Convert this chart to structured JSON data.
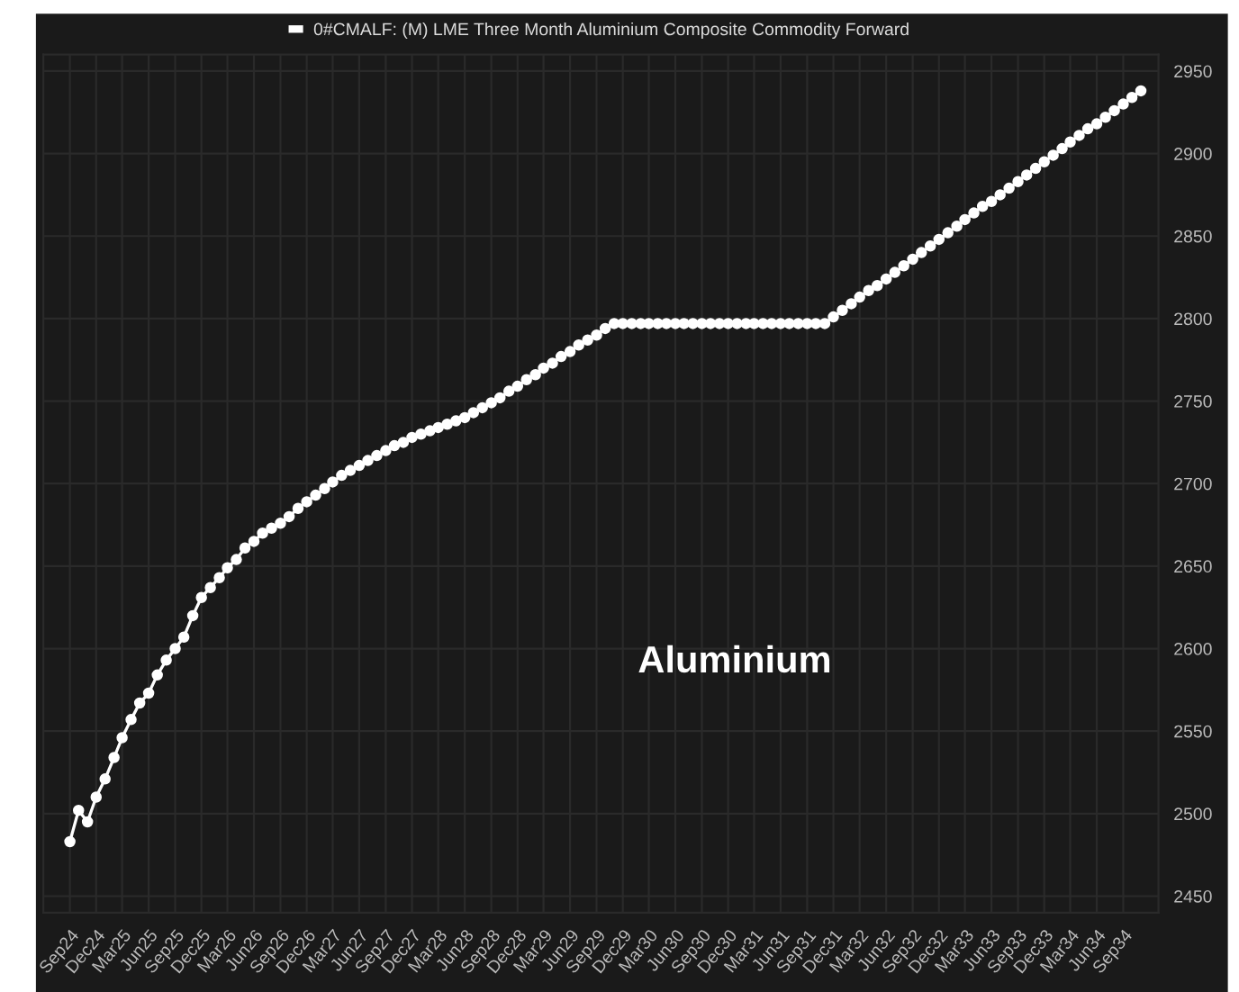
{
  "chart_data": {
    "type": "line",
    "x": [
      "2024-09",
      "2024-10",
      "2024-11",
      "2024-12",
      "2025-01",
      "2025-02",
      "2025-03",
      "2025-04",
      "2025-05",
      "2025-06",
      "2025-07",
      "2025-08",
      "2025-09",
      "2025-10",
      "2025-11",
      "2025-12",
      "2026-01",
      "2026-02",
      "2026-03",
      "2026-04",
      "2026-05",
      "2026-06",
      "2026-07",
      "2026-08",
      "2026-09",
      "2026-10",
      "2026-11",
      "2026-12",
      "2027-01",
      "2027-02",
      "2027-03",
      "2027-04",
      "2027-05",
      "2027-06",
      "2027-07",
      "2027-08",
      "2027-09",
      "2027-10",
      "2027-11",
      "2027-12",
      "2028-01",
      "2028-02",
      "2028-03",
      "2028-04",
      "2028-05",
      "2028-06",
      "2028-07",
      "2028-08",
      "2028-09",
      "2028-10",
      "2028-11",
      "2028-12",
      "2029-01",
      "2029-02",
      "2029-03",
      "2029-04",
      "2029-05",
      "2029-06",
      "2029-07",
      "2029-08",
      "2029-09",
      "2029-10",
      "2029-11",
      "2029-12",
      "2030-01",
      "2030-02",
      "2030-03",
      "2030-04",
      "2030-05",
      "2030-06",
      "2030-07",
      "2030-08",
      "2030-09",
      "2030-10",
      "2030-11",
      "2030-12",
      "2031-01",
      "2031-02",
      "2031-03",
      "2031-04",
      "2031-05",
      "2031-06",
      "2031-07",
      "2031-08",
      "2031-09",
      "2031-10",
      "2031-11",
      "2031-12",
      "2032-01",
      "2032-02",
      "2032-03",
      "2032-04",
      "2032-05",
      "2032-06",
      "2032-07",
      "2032-08",
      "2032-09",
      "2032-10",
      "2032-11",
      "2032-12",
      "2033-01",
      "2033-02",
      "2033-03",
      "2033-04",
      "2033-05",
      "2033-06",
      "2033-07",
      "2033-08",
      "2033-09",
      "2033-10",
      "2033-11",
      "2033-12",
      "2034-01",
      "2034-02",
      "2034-03",
      "2034-04",
      "2034-05",
      "2034-06",
      "2034-07",
      "2034-08",
      "2034-09",
      "2034-10",
      "2034-11"
    ],
    "series": [
      {
        "name": "0#CMALF: (M) LME Three Month Aluminium Composite Commodity Forward",
        "color": "#ffffff",
        "values": [
          2483,
          2502,
          2495,
          2510,
          2521,
          2534,
          2546,
          2557,
          2567,
          2573,
          2584,
          2593,
          2600,
          2607,
          2620,
          2631,
          2637,
          2643,
          2649,
          2654,
          2661,
          2665,
          2670,
          2673,
          2676,
          2680,
          2685,
          2689,
          2693,
          2697,
          2701,
          2705,
          2708,
          2711,
          2714,
          2717,
          2720,
          2723,
          2725,
          2728,
          2730,
          2732,
          2734,
          2736,
          2738,
          2740,
          2743,
          2746,
          2749,
          2752,
          2756,
          2759,
          2763,
          2766,
          2770,
          2773,
          2777,
          2780,
          2784,
          2787,
          2790,
          2794,
          2797,
          2797,
          2797,
          2797,
          2797,
          2797,
          2797,
          2797,
          2797,
          2797,
          2797,
          2797,
          2797,
          2797,
          2797,
          2797,
          2797,
          2797,
          2797,
          2797,
          2797,
          2797,
          2797,
          2797,
          2797,
          2801,
          2805,
          2809,
          2813,
          2817,
          2820,
          2824,
          2828,
          2832,
          2836,
          2840,
          2844,
          2848,
          2852,
          2856,
          2860,
          2864,
          2868,
          2871,
          2875,
          2879,
          2883,
          2887,
          2891,
          2895,
          2899,
          2903,
          2907,
          2911,
          2915,
          2918,
          2922,
          2926,
          2930,
          2934,
          2938
        ]
      }
    ],
    "xlim": [
      "2024-06",
      "2035-01"
    ],
    "xticks": [
      {
        "value": "2024-09",
        "label": "Sep24"
      },
      {
        "value": "2024-12",
        "label": "Dec24"
      },
      {
        "value": "2025-03",
        "label": "Mar25"
      },
      {
        "value": "2025-06",
        "label": "Jun25"
      },
      {
        "value": "2025-09",
        "label": "Sep25"
      },
      {
        "value": "2025-12",
        "label": "Dec25"
      },
      {
        "value": "2026-03",
        "label": "Mar26"
      },
      {
        "value": "2026-06",
        "label": "Jun26"
      },
      {
        "value": "2026-09",
        "label": "Sep26"
      },
      {
        "value": "2026-12",
        "label": "Dec26"
      },
      {
        "value": "2027-03",
        "label": "Mar27"
      },
      {
        "value": "2027-06",
        "label": "Jun27"
      },
      {
        "value": "2027-09",
        "label": "Sep27"
      },
      {
        "value": "2027-12",
        "label": "Dec27"
      },
      {
        "value": "2028-03",
        "label": "Mar28"
      },
      {
        "value": "2028-06",
        "label": "Jun28"
      },
      {
        "value": "2028-09",
        "label": "Sep28"
      },
      {
        "value": "2028-12",
        "label": "Dec28"
      },
      {
        "value": "2029-03",
        "label": "Mar29"
      },
      {
        "value": "2029-06",
        "label": "Jun29"
      },
      {
        "value": "2029-09",
        "label": "Sep29"
      },
      {
        "value": "2029-12",
        "label": "Dec29"
      },
      {
        "value": "2030-03",
        "label": "Mar30"
      },
      {
        "value": "2030-06",
        "label": "Jun30"
      },
      {
        "value": "2030-09",
        "label": "Sep30"
      },
      {
        "value": "2030-12",
        "label": "Dec30"
      },
      {
        "value": "2031-03",
        "label": "Mar31"
      },
      {
        "value": "2031-06",
        "label": "Jun31"
      },
      {
        "value": "2031-09",
        "label": "Sep31"
      },
      {
        "value": "2031-12",
        "label": "Dec31"
      },
      {
        "value": "2032-03",
        "label": "Mar32"
      },
      {
        "value": "2032-06",
        "label": "Jun32"
      },
      {
        "value": "2032-09",
        "label": "Sep32"
      },
      {
        "value": "2032-12",
        "label": "Dec32"
      },
      {
        "value": "2033-03",
        "label": "Mar33"
      },
      {
        "value": "2033-06",
        "label": "Jun33"
      },
      {
        "value": "2033-09",
        "label": "Sep33"
      },
      {
        "value": "2033-12",
        "label": "Dec33"
      },
      {
        "value": "2034-03",
        "label": "Mar34"
      },
      {
        "value": "2034-06",
        "label": "Jun34"
      },
      {
        "value": "2034-09",
        "label": "Sep34"
      }
    ],
    "ylim": [
      2440,
      2960
    ],
    "yticks": [
      2450,
      2500,
      2550,
      2600,
      2650,
      2700,
      2750,
      2800,
      2850,
      2900,
      2950
    ],
    "grid": true,
    "legend": "top",
    "marker": "circle",
    "line_style": "solid",
    "annotations": [
      "Aluminium"
    ]
  }
}
